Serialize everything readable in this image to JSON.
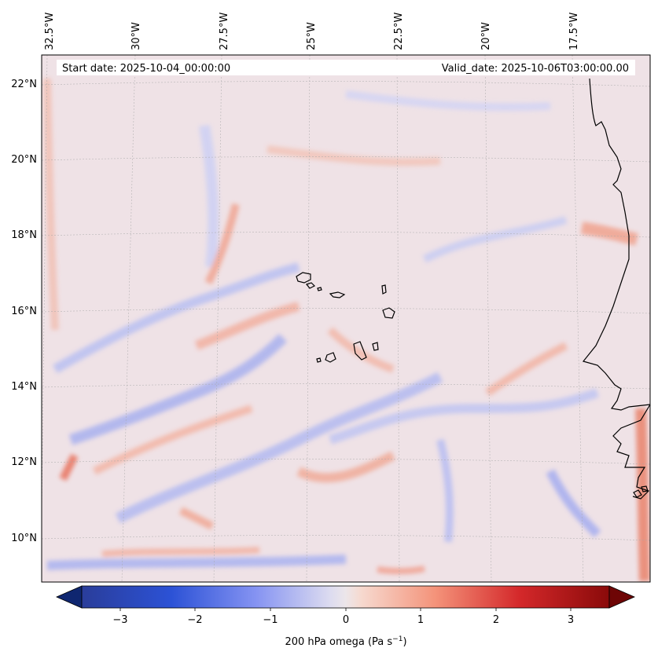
{
  "map": {
    "start_date": "Start date: 2025-10-04_00:00:00",
    "valid_date": "Valid_date: 2025-10-06T03:00:00.00",
    "lon_labels": [
      "32.5°W",
      "30°W",
      "27.5°W",
      "25°W",
      "22.5°W",
      "20°W",
      "17.5°W"
    ],
    "lat_labels": [
      "22°N",
      "20°N",
      "18°N",
      "16°N",
      "14°N",
      "12°N",
      "10°N"
    ],
    "colorbar": {
      "label_main": "200 hPa omega (Pa s",
      "label_exp": "−1",
      "label_close": ")",
      "ticks": [
        "−3",
        "−2",
        "−1",
        "0",
        "1",
        "2",
        "3"
      ],
      "range": [
        -3.6,
        3.6
      ],
      "colormap": "coolwarm (dark blue → white → dark red)",
      "colors": [
        "#0b1a5c",
        "#2a4fd0",
        "#8a9cf5",
        "#e8e6f2",
        "#f79a7e",
        "#d4242a",
        "#6e0505"
      ]
    },
    "field_colors": {
      "background": "#efe2e6",
      "positive": "#f2b4a4",
      "negative": "#c7cbf4",
      "strong_positive": "#ea7b67",
      "strong_negative": "#9fa8f0"
    },
    "coastline_color": "#000000",
    "gridline_color": "#a9a9a9"
  }
}
